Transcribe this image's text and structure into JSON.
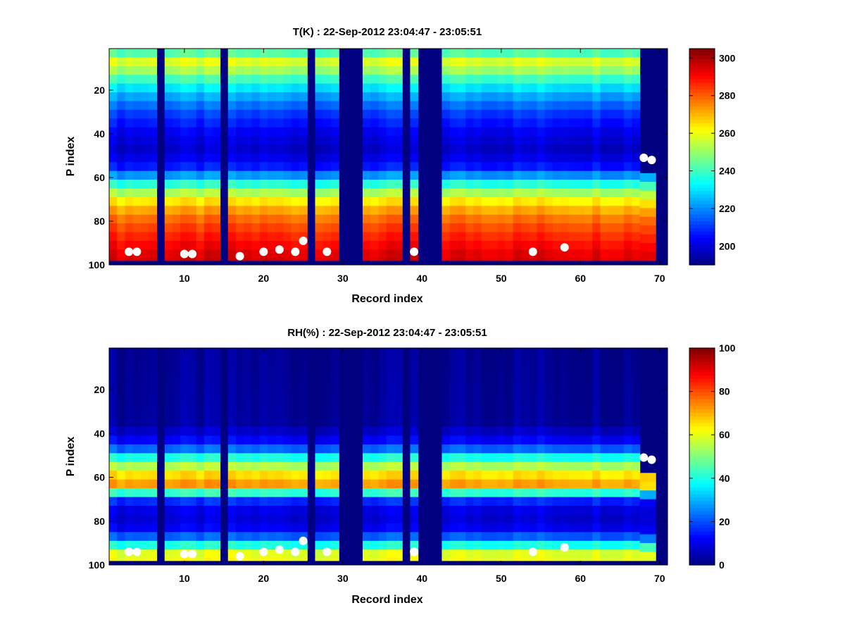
{
  "chart_data": [
    {
      "type": "heatmap",
      "title": "T(K) : 22-Sep-2012 23:04:47 - 23:05:51",
      "xlabel": "Record index",
      "ylabel": "P index",
      "xlim": [
        0.5,
        71
      ],
      "ylim": [
        1,
        100
      ],
      "y_reversed": true,
      "x_ticks": [
        10,
        20,
        30,
        40,
        50,
        60,
        70
      ],
      "y_ticks": [
        20,
        40,
        60,
        80,
        100
      ],
      "colorbar": {
        "min": 190,
        "max": 305,
        "ticks": [
          200,
          220,
          240,
          260,
          280,
          300
        ],
        "colormap": "jet"
      },
      "missing_records": [
        7,
        15,
        26,
        30,
        31,
        32,
        38,
        40,
        41,
        42,
        70
      ],
      "fill_value": 190,
      "profile": {
        "p": [
          1,
          8,
          12,
          20,
          30,
          40,
          48,
          55,
          60,
          65,
          70,
          75,
          80,
          85,
          90,
          95,
          98
        ],
        "value": [
          235,
          262,
          248,
          228,
          212,
          202,
          198,
          207,
          225,
          246,
          262,
          272,
          280,
          285,
          290,
          294,
          296
        ]
      },
      "surface_points": [
        {
          "record": 3,
          "p": 94
        },
        {
          "record": 4,
          "p": 94
        },
        {
          "record": 10,
          "p": 95
        },
        {
          "record": 11,
          "p": 95
        },
        {
          "record": 17,
          "p": 96
        },
        {
          "record": 20,
          "p": 94
        },
        {
          "record": 22,
          "p": 93
        },
        {
          "record": 24,
          "p": 94
        },
        {
          "record": 25,
          "p": 89
        },
        {
          "record": 28,
          "p": 94
        },
        {
          "record": 39,
          "p": 94
        },
        {
          "record": 54,
          "p": 94
        },
        {
          "record": 58,
          "p": 92
        },
        {
          "record": 68,
          "p": 51
        },
        {
          "record": 69,
          "p": 52
        }
      ]
    },
    {
      "type": "heatmap",
      "title": "RH(%) : 22-Sep-2012 23:04:47 - 23:05:51",
      "xlabel": "Record index",
      "ylabel": "P index",
      "xlim": [
        0.5,
        71
      ],
      "ylim": [
        1,
        100
      ],
      "y_reversed": true,
      "x_ticks": [
        10,
        20,
        30,
        40,
        50,
        60,
        70
      ],
      "y_ticks": [
        20,
        40,
        60,
        80,
        100
      ],
      "colorbar": {
        "min": 0,
        "max": 100,
        "ticks": [
          0,
          20,
          40,
          60,
          80,
          100
        ],
        "colormap": "jet"
      },
      "missing_records": [
        7,
        15,
        26,
        30,
        31,
        32,
        38,
        40,
        41,
        42,
        70
      ],
      "fill_value": 0,
      "profile": {
        "p": [
          1,
          35,
          42,
          48,
          52,
          56,
          60,
          63,
          66,
          68,
          72,
          78,
          84,
          88,
          92,
          95,
          98
        ],
        "value": [
          2,
          3,
          10,
          25,
          45,
          58,
          68,
          72,
          55,
          30,
          12,
          8,
          12,
          25,
          45,
          60,
          62
        ]
      },
      "surface_points": [
        {
          "record": 3,
          "p": 94
        },
        {
          "record": 4,
          "p": 94
        },
        {
          "record": 10,
          "p": 95
        },
        {
          "record": 11,
          "p": 95
        },
        {
          "record": 17,
          "p": 96
        },
        {
          "record": 20,
          "p": 94
        },
        {
          "record": 22,
          "p": 93
        },
        {
          "record": 24,
          "p": 94
        },
        {
          "record": 25,
          "p": 89
        },
        {
          "record": 28,
          "p": 94
        },
        {
          "record": 39,
          "p": 94
        },
        {
          "record": 54,
          "p": 94
        },
        {
          "record": 58,
          "p": 92
        },
        {
          "record": 68,
          "p": 51
        },
        {
          "record": 69,
          "p": 52
        }
      ]
    }
  ]
}
